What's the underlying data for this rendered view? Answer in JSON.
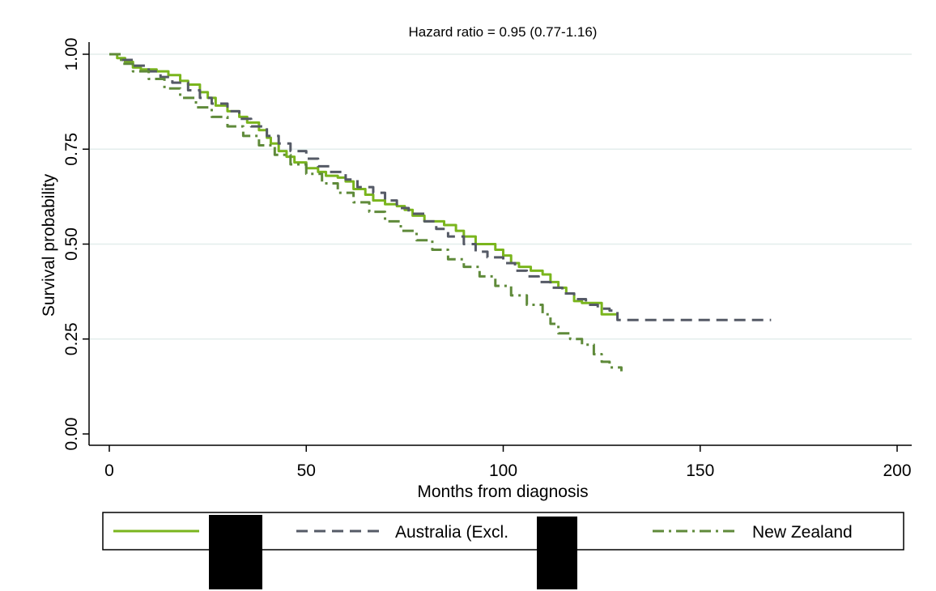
{
  "chart_data": {
    "type": "line",
    "title": "Hazard ratio = 0.95 (0.77-1.16)",
    "xlabel": "Months from diagnosis",
    "ylabel": "Survival probability",
    "xlim": [
      0,
      200
    ],
    "ylim": [
      0,
      1
    ],
    "xticks": [
      0,
      50,
      100,
      150,
      200
    ],
    "yticks": [
      "0.00",
      "0.25",
      "0.50",
      "0.75",
      "1.00"
    ],
    "grid": true,
    "legend_position": "bottom",
    "redacted_labels": [],
    "colors": {
      "series_1": "#7ab51d",
      "series_2": "#555a66",
      "series_3": "#5f8a3a",
      "grid": "#e3eeec",
      "axis": "#000000",
      "redaction": "#000000"
    },
    "series": [
      {
        "name": "",
        "style": "solid",
        "points": [
          [
            0,
            1.0
          ],
          [
            2,
            0.99
          ],
          [
            4,
            0.98
          ],
          [
            6,
            0.965
          ],
          [
            8,
            0.96
          ],
          [
            12,
            0.955
          ],
          [
            15,
            0.945
          ],
          [
            18,
            0.93
          ],
          [
            20,
            0.92
          ],
          [
            23,
            0.9
          ],
          [
            25,
            0.885
          ],
          [
            27,
            0.865
          ],
          [
            30,
            0.85
          ],
          [
            33,
            0.835
          ],
          [
            35,
            0.82
          ],
          [
            38,
            0.8
          ],
          [
            40,
            0.78
          ],
          [
            41,
            0.765
          ],
          [
            43,
            0.745
          ],
          [
            45,
            0.73
          ],
          [
            47,
            0.715
          ],
          [
            50,
            0.7
          ],
          [
            53,
            0.69
          ],
          [
            55,
            0.68
          ],
          [
            58,
            0.675
          ],
          [
            60,
            0.665
          ],
          [
            62,
            0.645
          ],
          [
            65,
            0.63
          ],
          [
            67,
            0.615
          ],
          [
            70,
            0.605
          ],
          [
            73,
            0.6
          ],
          [
            75,
            0.59
          ],
          [
            77,
            0.575
          ],
          [
            80,
            0.56
          ],
          [
            85,
            0.55
          ],
          [
            88,
            0.535
          ],
          [
            90,
            0.52
          ],
          [
            93,
            0.5
          ],
          [
            96,
            0.5
          ],
          [
            98,
            0.485
          ],
          [
            100,
            0.47
          ],
          [
            102,
            0.45
          ],
          [
            104,
            0.44
          ],
          [
            107,
            0.43
          ],
          [
            110,
            0.42
          ],
          [
            112,
            0.4
          ],
          [
            114,
            0.385
          ],
          [
            116,
            0.37
          ],
          [
            118,
            0.35
          ],
          [
            120,
            0.345
          ],
          [
            125,
            0.315
          ],
          [
            129,
            0.315
          ]
        ]
      },
      {
        "name": "Australia (Excl.",
        "style": "dashed",
        "points": [
          [
            0,
            1.0
          ],
          [
            3,
            0.985
          ],
          [
            6,
            0.97
          ],
          [
            10,
            0.955
          ],
          [
            13,
            0.94
          ],
          [
            16,
            0.925
          ],
          [
            20,
            0.905
          ],
          [
            23,
            0.885
          ],
          [
            26,
            0.87
          ],
          [
            30,
            0.85
          ],
          [
            33,
            0.83
          ],
          [
            36,
            0.81
          ],
          [
            40,
            0.785
          ],
          [
            43,
            0.765
          ],
          [
            46,
            0.745
          ],
          [
            50,
            0.725
          ],
          [
            53,
            0.705
          ],
          [
            56,
            0.69
          ],
          [
            60,
            0.67
          ],
          [
            63,
            0.65
          ],
          [
            67,
            0.635
          ],
          [
            70,
            0.615
          ],
          [
            73,
            0.595
          ],
          [
            76,
            0.58
          ],
          [
            80,
            0.56
          ],
          [
            83,
            0.54
          ],
          [
            86,
            0.52
          ],
          [
            90,
            0.5
          ],
          [
            93,
            0.48
          ],
          [
            96,
            0.465
          ],
          [
            100,
            0.45
          ],
          [
            103,
            0.43
          ],
          [
            106,
            0.415
          ],
          [
            109,
            0.4
          ],
          [
            112,
            0.385
          ],
          [
            115,
            0.37
          ],
          [
            118,
            0.355
          ],
          [
            121,
            0.34
          ],
          [
            124,
            0.33
          ],
          [
            127,
            0.325
          ],
          [
            129,
            0.32
          ],
          [
            129,
            0.3
          ],
          [
            168,
            0.3
          ]
        ]
      },
      {
        "name": "New Zealand",
        "style": "dashdot",
        "points": [
          [
            0,
            1.0
          ],
          [
            3,
            0.975
          ],
          [
            6,
            0.955
          ],
          [
            10,
            0.935
          ],
          [
            14,
            0.91
          ],
          [
            18,
            0.885
          ],
          [
            22,
            0.86
          ],
          [
            26,
            0.835
          ],
          [
            30,
            0.81
          ],
          [
            34,
            0.785
          ],
          [
            38,
            0.76
          ],
          [
            42,
            0.735
          ],
          [
            46,
            0.71
          ],
          [
            50,
            0.685
          ],
          [
            54,
            0.66
          ],
          [
            58,
            0.635
          ],
          [
            62,
            0.61
          ],
          [
            66,
            0.585
          ],
          [
            70,
            0.56
          ],
          [
            74,
            0.535
          ],
          [
            78,
            0.51
          ],
          [
            82,
            0.485
          ],
          [
            86,
            0.46
          ],
          [
            90,
            0.44
          ],
          [
            94,
            0.415
          ],
          [
            98,
            0.39
          ],
          [
            102,
            0.365
          ],
          [
            106,
            0.34
          ],
          [
            110,
            0.315
          ],
          [
            112,
            0.29
          ],
          [
            114,
            0.265
          ],
          [
            117,
            0.25
          ],
          [
            120,
            0.235
          ],
          [
            123,
            0.21
          ],
          [
            125,
            0.19
          ],
          [
            127,
            0.175
          ],
          [
            130,
            0.165
          ]
        ]
      }
    ]
  }
}
